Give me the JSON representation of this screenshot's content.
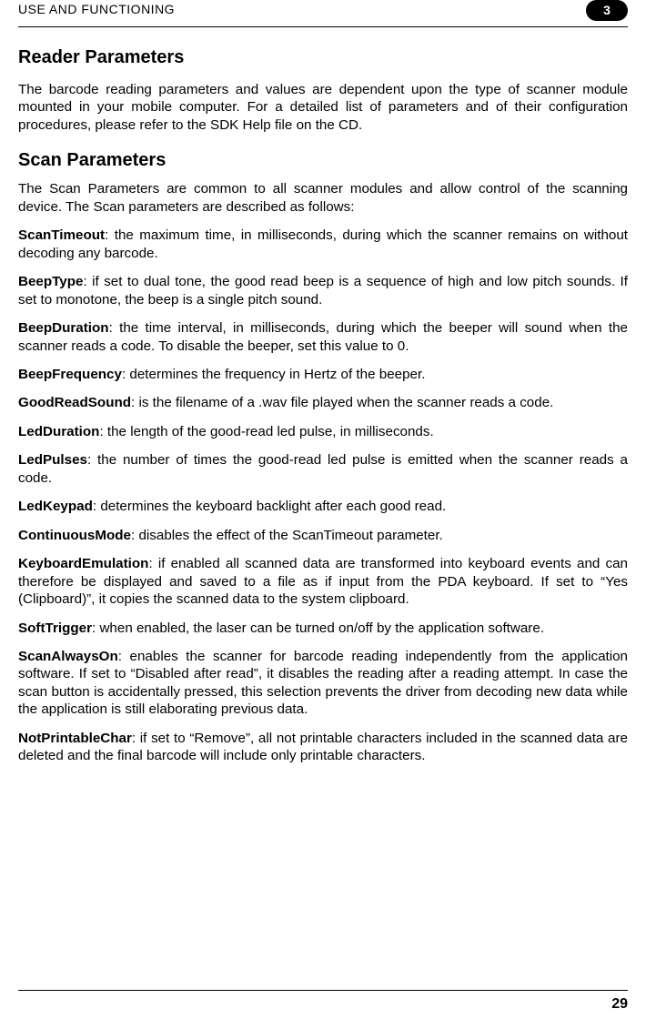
{
  "header": {
    "section": "USE AND FUNCTIONING",
    "page_badge": "3"
  },
  "h1": "Reader Parameters",
  "intro": "The barcode reading parameters and values are dependent upon the type of scanner module mounted in your mobile computer. For a detailed list of parameters and of their configuration procedures, please refer to the SDK Help file on the CD.",
  "h2": "Scan Parameters",
  "scan_intro": "The Scan Parameters are common to all scanner modules and allow control of the scanning device. The Scan parameters are described as follows:",
  "params": [
    {
      "term": "ScanTimeout",
      "desc": ": the maximum time, in milliseconds, during which the scanner remains on without decoding any barcode."
    },
    {
      "term": "BeepType",
      "desc": ": if set to dual tone, the good read beep is a sequence of high and low pitch sounds. If set to monotone, the beep is a single pitch sound."
    },
    {
      "term": "BeepDuration",
      "desc": ": the time interval, in milliseconds, during which the beeper will sound when the scanner reads a code. To disable the beeper, set this value to 0."
    },
    {
      "term": "BeepFrequency",
      "desc": ": determines the frequency in Hertz of the beeper."
    },
    {
      "term": "GoodReadSound",
      "desc": ": is the filename of a .wav file played when the scanner reads a code."
    },
    {
      "term": "LedDuration",
      "desc": ": the length of the good-read led pulse, in milliseconds."
    },
    {
      "term": "LedPulses",
      "desc": ": the number of times the good-read led pulse is emitted when the scanner reads a code."
    },
    {
      "term": "LedKeypad",
      "desc": ": determines the keyboard backlight after each good read."
    },
    {
      "term": "ContinuousMode",
      "desc": ": disables the effect of the ScanTimeout parameter."
    },
    {
      "term": "KeyboardEmulation",
      "desc": ": if enabled all scanned data are transformed into keyboard events and can therefore be displayed and saved to a file as if input from the PDA keyboard. If set to “Yes (Clipboard)”, it copies the scanned data to the system clipboard."
    },
    {
      "term": "SoftTrigger",
      "desc": ": when enabled, the laser can be turned on/off by the application software."
    },
    {
      "term": "ScanAlwaysOn",
      "desc": ": enables the scanner for barcode reading independently from the application software. If set to “Disabled after read”, it disables the reading after a reading attempt. In case the scan button is accidentally pressed, this selection prevents the driver from decoding new data while the application is still elaborating previous data."
    },
    {
      "term": "NotPrintableChar",
      "desc": ": if set to “Remove”, all not printable characters included in the scanned data are deleted and the final barcode will include only printable characters."
    }
  ],
  "footer_page": "29"
}
